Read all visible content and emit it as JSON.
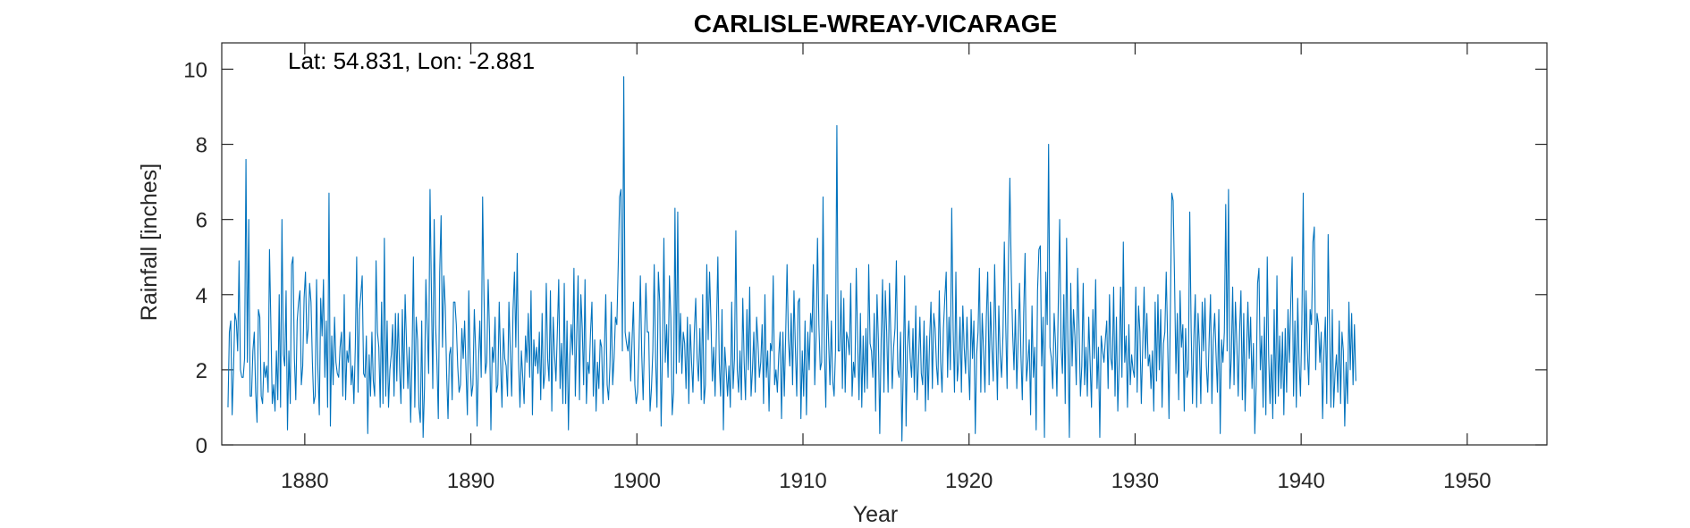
{
  "chart_data": {
    "type": "line",
    "title": "CARLISLE-WREAY-VICARAGE",
    "annotation": "Lat: 54.831, Lon: -2.881",
    "xlabel": "Year",
    "ylabel": "Rainfall [inches]",
    "xlim": [
      1875,
      1954.8
    ],
    "ylim": [
      0,
      10.7
    ],
    "xticks": [
      1880,
      1890,
      1900,
      1910,
      1920,
      1930,
      1940,
      1950
    ],
    "yticks": [
      0,
      2,
      4,
      6,
      8,
      10
    ],
    "grid": false,
    "line_color": "#0072BD",
    "series": [
      {
        "x_start": 1875.375,
        "x_step": 0.0833333,
        "values": [
          1.0,
          3.0,
          3.3,
          0.8,
          2.0,
          3.5,
          3.3,
          2.5,
          4.9,
          2.0,
          1.8,
          1.8,
          2.3,
          7.6,
          2.2,
          6.0,
          1.3,
          1.3,
          2.5,
          3.0,
          1.4,
          0.6,
          3.6,
          3.4,
          1.3,
          1.1,
          2.2,
          1.8,
          2.1,
          1.4,
          5.2,
          3.2,
          1.1,
          1.6,
          0.9,
          2.5,
          1.2,
          4.0,
          1.0,
          6.0,
          2.4,
          2.1,
          4.1,
          0.4,
          2.5,
          1.1,
          4.8,
          5.0,
          2.3,
          1.2,
          3.3,
          3.8,
          4.1,
          1.6,
          2.1,
          3.9,
          4.6,
          2.7,
          3.1,
          4.3,
          3.8,
          2.2,
          1.1,
          1.3,
          4.4,
          2.0,
          0.8,
          3.9,
          2.9,
          4.4,
          1.8,
          3.3,
          1.0,
          6.7,
          0.5,
          2.9,
          1.6,
          3.4,
          2.2,
          1.9,
          1.8,
          2.6,
          3.0,
          1.3,
          4.0,
          1.2,
          2.5,
          2.2,
          3.0,
          1.6,
          2.1,
          1.1,
          2.6,
          5.0,
          1.4,
          3.6,
          4.0,
          4.5,
          1.9,
          1.8,
          2.9,
          0.3,
          2.4,
          1.3,
          3.0,
          1.7,
          1.3,
          4.9,
          3.0,
          2.6,
          1.0,
          3.8,
          1.1,
          5.5,
          1.3,
          3.3,
          1.0,
          2.0,
          2.4,
          3.2,
          1.3,
          3.5,
          1.7,
          3.5,
          2.0,
          1.1,
          3.6,
          1.5,
          4.0,
          2.7,
          1.5,
          2.6,
          0.6,
          2.3,
          5.0,
          1.0,
          3.4,
          2.8,
          1.0,
          0.6,
          3.3,
          0.2,
          1.5,
          4.4,
          3.1,
          1.9,
          6.8,
          4.1,
          1.5,
          6.0,
          3.2,
          2.2,
          0.7,
          4.6,
          6.1,
          2.6,
          4.5,
          3.7,
          1.9,
          0.7,
          2.4,
          2.6,
          1.2,
          3.8,
          3.8,
          3.2,
          2.1,
          1.4,
          1.6,
          3.1,
          2.3,
          3.3,
          2.0,
          0.8,
          4.1,
          2.2,
          1.3,
          1.6,
          3.6,
          2.5,
          0.5,
          2.2,
          3.3,
          1.8,
          6.6,
          4.0,
          1.9,
          2.2,
          4.4,
          3.0,
          0.4,
          2.6,
          2.2,
          3.4,
          1.4,
          1.6,
          3.8,
          2.2,
          1.0,
          3.1,
          2.3,
          2.1,
          1.3,
          3.8,
          2.5,
          1.3,
          3.6,
          4.6,
          2.6,
          5.1,
          2.2,
          1.0,
          2.5,
          1.8,
          1.1,
          2.9,
          2.2,
          3.5,
          1.8,
          4.1,
          0.8,
          2.8,
          2.1,
          2.6,
          1.9,
          3.0,
          1.2,
          3.5,
          1.5,
          1.9,
          4.3,
          2.3,
          1.7,
          4.1,
          0.9,
          3.4,
          2.4,
          1.7,
          3.0,
          4.4,
          1.5,
          2.7,
          1.1,
          4.3,
          1.1,
          3.3,
          0.4,
          2.3,
          3.2,
          2.4,
          4.7,
          1.3,
          2.9,
          4.5,
          1.2,
          4.0,
          3.1,
          1.6,
          4.4,
          1.1,
          2.2,
          1.9,
          3.0,
          3.8,
          1.3,
          2.8,
          0.9,
          2.2,
          1.5,
          2.8,
          2.6,
          1.1,
          2.5,
          4.0,
          1.6,
          1.2,
          2.1,
          3.8,
          1.6,
          2.3,
          3.4,
          3.2,
          4.8,
          6.6,
          6.8,
          2.5,
          9.8,
          3.0,
          2.7,
          2.5,
          3.0,
          1.7,
          2.8,
          3.8,
          1.6,
          1.1,
          1.4,
          2.6,
          4.5,
          2.4,
          1.2,
          2.8,
          4.3,
          3.0,
          3.0,
          0.9,
          1.5,
          2.5,
          4.8,
          2.3,
          1.0,
          4.6,
          3.8,
          0.5,
          2.5,
          5.5,
          2.2,
          3.2,
          1.8,
          4.5,
          3.4,
          0.8,
          1.4,
          6.3,
          1.9,
          6.2,
          2.2,
          3.5,
          1.9,
          3.0,
          2.7,
          1.5,
          3.4,
          1.1,
          3.2,
          2.2,
          1.4,
          3.0,
          3.9,
          2.3,
          1.7,
          3.1,
          1.2,
          4.0,
          1.1,
          1.6,
          4.8,
          2.8,
          4.6,
          3.3,
          1.7,
          2.6,
          1.3,
          3.1,
          5.0,
          2.2,
          1.3,
          3.6,
          0.4,
          2.6,
          2.0,
          1.3,
          2.1,
          1.0,
          3.8,
          1.5,
          2.3,
          5.7,
          2.0,
          1.4,
          2.5,
          1.2,
          3.9,
          2.2,
          1.2,
          3.6,
          2.0,
          4.2,
          1.3,
          2.0,
          3.0,
          1.4,
          3.4,
          2.7,
          1.8,
          2.2,
          3.2,
          1.1,
          4.0,
          1.8,
          2.5,
          0.9,
          2.7,
          2.5,
          4.5,
          1.6,
          2.0,
          1.4,
          2.4,
          3.0,
          0.7,
          3.0,
          1.3,
          2.9,
          4.8,
          2.8,
          2.1,
          3.5,
          1.6,
          4.1,
          2.6,
          1.3,
          3.8,
          3.9,
          0.7,
          2.5,
          1.3,
          3.3,
          0.8,
          3.0,
          2.0,
          3.5,
          3.0,
          4.8,
          1.6,
          2.9,
          5.5,
          3.2,
          2.0,
          2.2,
          6.6,
          2.5,
          1.0,
          4.0,
          2.8,
          1.6,
          3.3,
          1.7,
          1.3,
          2.5,
          8.5,
          2.5,
          2.5,
          4.1,
          1.5,
          3.9,
          1.4,
          3.0,
          2.8,
          2.4,
          4.3,
          1.3,
          2.2,
          1.8,
          4.7,
          2.8,
          1.2,
          3.5,
          1.0,
          2.9,
          1.4,
          3.1,
          1.5,
          4.8,
          2.7,
          2.5,
          1.8,
          3.5,
          0.9,
          4.0,
          2.8,
          0.3,
          2.8,
          4.4,
          1.4,
          4.1,
          3.0,
          1.4,
          4.3,
          2.9,
          1.5,
          2.6,
          3.1,
          4.9,
          2.0,
          1.8,
          3.0,
          0.1,
          2.0,
          4.5,
          0.5,
          2.6,
          3.3,
          2.3,
          1.8,
          3.1,
          1.4,
          3.7,
          1.2,
          2.2,
          3.4,
          1.9,
          1.6,
          3.3,
          0.9,
          2.9,
          1.2,
          2.8,
          3.8,
          1.5,
          3.5,
          3.1,
          2.1,
          1.6,
          4.1,
          2.2,
          1.4,
          3.1,
          3.9,
          4.6,
          1.8,
          3.4,
          2.0,
          6.3,
          3.1,
          1.4,
          4.6,
          1.7,
          2.2,
          3.4,
          1.4,
          3.7,
          2.6,
          1.9,
          3.4,
          2.2,
          1.2,
          3.6,
          2.3,
          3.3,
          0.3,
          2.4,
          3.0,
          4.7,
          1.4,
          3.5,
          2.5,
          1.4,
          3.4,
          4.6,
          1.6,
          3.8,
          2.6,
          1.7,
          4.8,
          2.9,
          1.2,
          3.7,
          2.4,
          1.8,
          2.9,
          5.4,
          3.2,
          1.5,
          4.9,
          7.1,
          4.6,
          3.0,
          2.0,
          3.6,
          1.5,
          2.8,
          4.3,
          2.4,
          1.2,
          3.5,
          5.1,
          1.7,
          2.2,
          2.8,
          0.8,
          3.7,
          1.8,
          2.6,
          0.4,
          4.1,
          5.2,
          5.3,
          2.1,
          3.4,
          0.2,
          4.6,
          3.2,
          8.0,
          2.6,
          2.3,
          1.5,
          3.5,
          2.7,
          1.3,
          3.8,
          6.0,
          2.6,
          1.9,
          4.0,
          1.1,
          5.5,
          2.6,
          0.2,
          4.3,
          2.1,
          3.6,
          2.9,
          1.6,
          4.7,
          3.1,
          1.3,
          2.1,
          4.3,
          1.6,
          2.6,
          1.3,
          3.4,
          2.2,
          1.0,
          3.6,
          2.3,
          4.4,
          1.5,
          2.6,
          0.2,
          2.9,
          2.5,
          2.2,
          2.8,
          3.3,
          1.5,
          4.0,
          2.3,
          2.0,
          4.2,
          1.3,
          3.4,
          0.9,
          2.2,
          4.2,
          1.8,
          5.4,
          2.2,
          2.9,
          1.0,
          3.2,
          1.6,
          2.4,
          2.0,
          1.8,
          4.2,
          1.4,
          3.7,
          3.0,
          1.1,
          2.6,
          4.2,
          2.3,
          3.5,
          2.1,
          2.4,
          1.5,
          2.5,
          0.9,
          3.8,
          1.7,
          4.0,
          2.0,
          3.6,
          1.0,
          2.7,
          3.0,
          4.6,
          2.8,
          0.7,
          3.6,
          6.7,
          6.5,
          4.4,
          1.9,
          3.5,
          1.2,
          4.1,
          2.6,
          3.2,
          0.9,
          3.1,
          1.8,
          2.0,
          6.2,
          3.1,
          1.1,
          2.9,
          4.0,
          1.0,
          3.5,
          2.6,
          1.1,
          3.8,
          2.5,
          3.9,
          2.1,
          1.4,
          2.8,
          4.0,
          1.1,
          2.8,
          3.5,
          2.4,
          1.4,
          3.6,
          0.3,
          2.8,
          2.2,
          3.0,
          6.4,
          2.5,
          6.8,
          1.5,
          2.3,
          4.2,
          1.6,
          3.8,
          2.7,
          1.3,
          3.0,
          4.1,
          1.2,
          3.5,
          0.9,
          2.4,
          3.8,
          2.3,
          3.4,
          1.5,
          2.7,
          0.3,
          1.6,
          4.3,
          4.7,
          2.0,
          2.9,
          1.0,
          3.4,
          0.8,
          5.0,
          2.4,
          1.1,
          2.4,
          0.7,
          3.6,
          1.1,
          4.5,
          1.3,
          2.9,
          1.5,
          3.0,
          0.8,
          3.1,
          1.4,
          3.6,
          2.2,
          3.8,
          5.0,
          1.3,
          3.3,
          1.0,
          3.9,
          2.2,
          1.3,
          3.2,
          6.7,
          2.0,
          4.1,
          2.5,
          1.6,
          3.6,
          3.2,
          5.4,
          5.8,
          2.0,
          3.5,
          3.2,
          2.2,
          3.0,
          0.7,
          2.5,
          3.4,
          1.1,
          5.6,
          3.2,
          1.0,
          3.6,
          1.0,
          1.9,
          2.4,
          1.4,
          3.3,
          1.1,
          3.0,
          2.5,
          0.5,
          2.2,
          1.1,
          3.8,
          2.0,
          3.5,
          1.6,
          3.2,
          1.7
        ]
      }
    ]
  }
}
